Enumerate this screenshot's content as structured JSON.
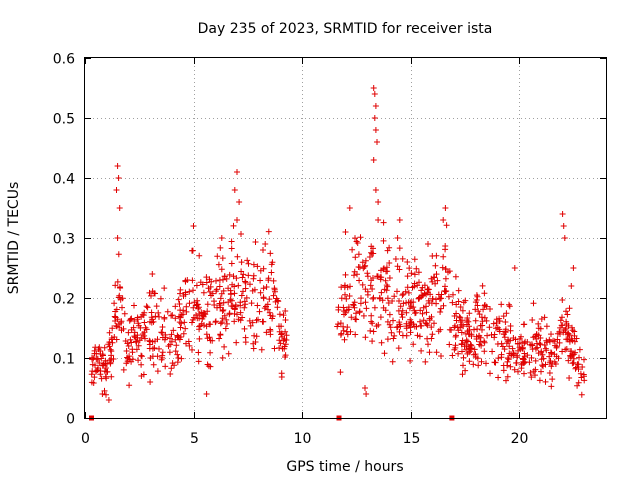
{
  "chart_data": {
    "type": "scatter",
    "title": "Day 235 of 2023, SRMTID for receiver ista",
    "xlabel": "GPS time / hours",
    "ylabel": "SRMTID / TECUs",
    "xlim": [
      0,
      24
    ],
    "ylim": [
      0,
      0.6
    ],
    "xticks": [
      0,
      5,
      10,
      15,
      20
    ],
    "yticks": [
      0,
      0.1,
      0.2,
      0.3,
      0.4,
      0.5,
      0.6
    ],
    "xtick_labels": [
      "0",
      "5",
      "10",
      "15",
      "20"
    ],
    "ytick_labels": [
      "0",
      "0.1",
      "0.2",
      "0.3",
      "0.4",
      "0.5",
      "0.6"
    ],
    "grid": true,
    "marker": "+",
    "color": "#e00000",
    "zero_markers_x": [
      0.3,
      11.7,
      16.9
    ],
    "series": [
      {
        "name": "SRMTID",
        "x_start": 0.3,
        "x_end": 23.0,
        "gaps": [
          [
            9.3,
            11.6
          ]
        ],
        "profile": [
          [
            0.3,
            0.08
          ],
          [
            0.7,
            0.1
          ],
          [
            1.0,
            0.08
          ],
          [
            1.4,
            0.15
          ],
          [
            1.6,
            0.19
          ],
          [
            1.9,
            0.1
          ],
          [
            2.5,
            0.14
          ],
          [
            3.0,
            0.15
          ],
          [
            3.5,
            0.14
          ],
          [
            4.0,
            0.12
          ],
          [
            4.5,
            0.17
          ],
          [
            5.0,
            0.2
          ],
          [
            5.5,
            0.17
          ],
          [
            6.0,
            0.18
          ],
          [
            6.5,
            0.2
          ],
          [
            7.0,
            0.21
          ],
          [
            7.5,
            0.2
          ],
          [
            8.0,
            0.19
          ],
          [
            8.5,
            0.21
          ],
          [
            9.0,
            0.14
          ],
          [
            9.3,
            0.13
          ],
          [
            11.6,
            0.14
          ],
          [
            12.0,
            0.2
          ],
          [
            12.5,
            0.22
          ],
          [
            13.0,
            0.2
          ],
          [
            13.5,
            0.22
          ],
          [
            14.0,
            0.19
          ],
          [
            14.5,
            0.2
          ],
          [
            15.0,
            0.18
          ],
          [
            15.5,
            0.18
          ],
          [
            16.0,
            0.19
          ],
          [
            16.5,
            0.22
          ],
          [
            17.0,
            0.17
          ],
          [
            17.5,
            0.13
          ],
          [
            18.0,
            0.14
          ],
          [
            18.5,
            0.15
          ],
          [
            19.0,
            0.13
          ],
          [
            19.5,
            0.12
          ],
          [
            20.0,
            0.1
          ],
          [
            20.5,
            0.12
          ],
          [
            21.0,
            0.12
          ],
          [
            21.5,
            0.11
          ],
          [
            22.0,
            0.14
          ],
          [
            22.5,
            0.11
          ],
          [
            23.0,
            0.08
          ]
        ],
        "peaks": [
          [
            1.5,
            0.42
          ],
          [
            1.55,
            0.4
          ],
          [
            1.45,
            0.38
          ],
          [
            1.6,
            0.35
          ],
          [
            1.5,
            0.3
          ],
          [
            6.9,
            0.38
          ],
          [
            7.0,
            0.41
          ],
          [
            7.1,
            0.36
          ],
          [
            7.0,
            0.33
          ],
          [
            6.3,
            0.3
          ],
          [
            5.0,
            0.32
          ],
          [
            3.1,
            0.24
          ],
          [
            8.3,
            0.29
          ],
          [
            8.2,
            0.28
          ],
          [
            13.3,
            0.55
          ],
          [
            13.35,
            0.54
          ],
          [
            13.4,
            0.52
          ],
          [
            13.35,
            0.5
          ],
          [
            13.4,
            0.48
          ],
          [
            13.45,
            0.46
          ],
          [
            13.3,
            0.43
          ],
          [
            13.4,
            0.38
          ],
          [
            13.5,
            0.36
          ],
          [
            13.5,
            0.33
          ],
          [
            12.2,
            0.35
          ],
          [
            12.0,
            0.31
          ],
          [
            14.5,
            0.33
          ],
          [
            14.4,
            0.3
          ],
          [
            16.6,
            0.35
          ],
          [
            16.5,
            0.33
          ],
          [
            15.8,
            0.29
          ],
          [
            16.0,
            0.27
          ],
          [
            22.0,
            0.34
          ],
          [
            22.05,
            0.32
          ],
          [
            22.1,
            0.3
          ],
          [
            22.5,
            0.25
          ],
          [
            19.8,
            0.25
          ],
          [
            22.4,
            0.22
          ],
          [
            12.9,
            0.05
          ],
          [
            12.95,
            0.04
          ],
          [
            5.6,
            0.04
          ],
          [
            0.8,
            0.04
          ],
          [
            1.1,
            0.03
          ]
        ]
      }
    ]
  }
}
